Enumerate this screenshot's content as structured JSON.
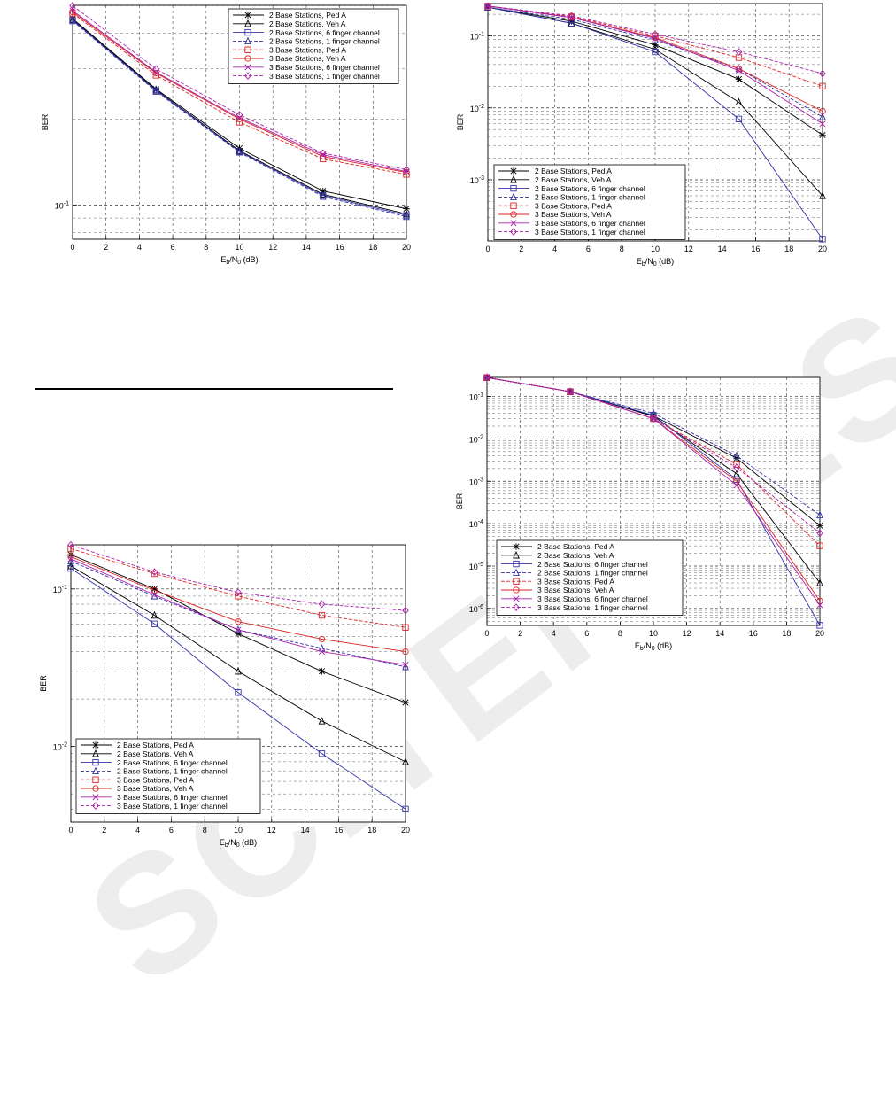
{
  "page": {
    "watermark": "SCITEPRESS"
  },
  "chart_data": [
    {
      "type": "line",
      "xlabel": "Eb/N0 (dB)",
      "ylabel": "BER",
      "xlim": [
        0,
        20
      ],
      "ylim_log10": [
        -1.12,
        -0.3
      ],
      "x_ticks": [
        0,
        2,
        4,
        6,
        8,
        10,
        12,
        14,
        16,
        18,
        20
      ],
      "y_tick_labels": [
        "10^-1"
      ],
      "grid": "dashed",
      "legend_position": "top-right",
      "x": [
        0,
        5,
        10,
        15,
        20
      ],
      "series": [
        {
          "name": "2 Base Stations, Ped A",
          "color": "#000000",
          "dash": false,
          "marker": "star",
          "values": [
            0.45,
            0.255,
            0.158,
            0.112,
            0.097
          ]
        },
        {
          "name": "2 Base Stations, Veh A",
          "color": "#000000",
          "dash": false,
          "marker": "triangle",
          "values": [
            0.447,
            0.253,
            0.155,
            0.109,
            0.093
          ]
        },
        {
          "name": "2 Base Stations, 6 finger channel",
          "color": "#3333aa",
          "dash": false,
          "marker": "square",
          "values": [
            0.445,
            0.252,
            0.154,
            0.108,
            0.092
          ]
        },
        {
          "name": "2 Base Stations, 1 finger channel",
          "color": "#3333aa",
          "dash": true,
          "marker": "triangle",
          "values": [
            0.442,
            0.25,
            0.153,
            0.107,
            0.091
          ]
        },
        {
          "name": "3 Base Stations, Ped A",
          "color": "#dd2222",
          "dash": true,
          "marker": "square",
          "values": [
            0.47,
            0.285,
            0.195,
            0.145,
            0.128
          ]
        },
        {
          "name": "3 Base Stations, Veh A",
          "color": "#dd2222",
          "dash": false,
          "marker": "circle",
          "values": [
            0.475,
            0.29,
            0.2,
            0.148,
            0.13
          ]
        },
        {
          "name": "3 Base Stations, 6 finger channel",
          "color": "#aa22aa",
          "dash": false,
          "marker": "x",
          "values": [
            0.48,
            0.292,
            0.202,
            0.15,
            0.131
          ]
        },
        {
          "name": "3 Base Stations, 1 finger channel",
          "color": "#aa22aa",
          "dash": true,
          "marker": "diamond",
          "values": [
            0.5,
            0.3,
            0.207,
            0.152,
            0.133
          ]
        }
      ]
    },
    {
      "type": "line",
      "xlabel": "Eb/N0 (dB)",
      "ylabel": "BER",
      "xlim": [
        0,
        20
      ],
      "ylim_log10": [
        -3.85,
        -0.55
      ],
      "x_ticks": [
        0,
        2,
        4,
        6,
        8,
        10,
        12,
        14,
        16,
        18,
        20
      ],
      "y_tick_labels": [
        "10^-1",
        "10^-2",
        "10^-3"
      ],
      "grid": "dashed",
      "legend_position": "bottom-left",
      "x": [
        0,
        5,
        10,
        15,
        20
      ],
      "series": [
        {
          "name": "2 Base Stations, Ped A",
          "color": "#000000",
          "dash": false,
          "marker": "star",
          "values": [
            0.25,
            0.16,
            0.075,
            0.025,
            0.0042
          ]
        },
        {
          "name": "2 Base Stations, Veh A",
          "color": "#000000",
          "dash": false,
          "marker": "triangle",
          "values": [
            0.25,
            0.15,
            0.065,
            0.012,
            0.0006
          ]
        },
        {
          "name": "2 Base Stations, 6 finger channel",
          "color": "#3333aa",
          "dash": false,
          "marker": "square",
          "values": [
            0.25,
            0.15,
            0.06,
            0.007,
            0.00015
          ]
        },
        {
          "name": "2 Base Stations, 1 finger channel",
          "color": "#3333aa",
          "dash": true,
          "marker": "triangle",
          "values": [
            0.25,
            0.17,
            0.088,
            0.035,
            0.0075
          ]
        },
        {
          "name": "3 Base Stations, Ped A",
          "color": "#dd2222",
          "dash": true,
          "marker": "square",
          "values": [
            0.26,
            0.185,
            0.1,
            0.05,
            0.02
          ]
        },
        {
          "name": "3 Base Stations, Veh A",
          "color": "#dd2222",
          "dash": false,
          "marker": "circle",
          "values": [
            0.26,
            0.18,
            0.095,
            0.035,
            0.009
          ]
        },
        {
          "name": "3 Base Stations, 6 finger channel",
          "color": "#aa22aa",
          "dash": false,
          "marker": "x",
          "values": [
            0.26,
            0.18,
            0.092,
            0.033,
            0.006
          ]
        },
        {
          "name": "3 Base Stations, 1 finger channel",
          "color": "#aa22aa",
          "dash": true,
          "marker": "diamond",
          "values": [
            0.26,
            0.19,
            0.105,
            0.06,
            0.03
          ]
        }
      ]
    },
    {
      "type": "line",
      "xlabel": "Eb/N0 (dB)",
      "ylabel": "BER",
      "xlim": [
        0,
        20
      ],
      "ylim_log10": [
        -2.48,
        -0.72
      ],
      "x_ticks": [
        0,
        2,
        4,
        6,
        8,
        10,
        12,
        14,
        16,
        18,
        20
      ],
      "y_tick_labels": [
        "10^-1",
        "10^-2"
      ],
      "grid": "dashed",
      "legend_position": "bottom-left",
      "x": [
        0,
        5,
        10,
        15,
        20
      ],
      "series": [
        {
          "name": "2 Base Stations, Ped A",
          "color": "#000000",
          "dash": false,
          "marker": "star",
          "values": [
            0.165,
            0.1,
            0.052,
            0.03,
            0.019
          ]
        },
        {
          "name": "2 Base Stations, Veh A",
          "color": "#000000",
          "dash": false,
          "marker": "triangle",
          "values": [
            0.14,
            0.068,
            0.03,
            0.0145,
            0.008
          ]
        },
        {
          "name": "2 Base Stations, 6 finger channel",
          "color": "#3333aa",
          "dash": false,
          "marker": "square",
          "values": [
            0.135,
            0.06,
            0.022,
            0.009,
            0.004
          ]
        },
        {
          "name": "2 Base Stations, 1 finger channel",
          "color": "#3333aa",
          "dash": true,
          "marker": "triangle",
          "values": [
            0.15,
            0.09,
            0.055,
            0.042,
            0.032
          ]
        },
        {
          "name": "3 Base Stations, Ped A",
          "color": "#dd2222",
          "dash": true,
          "marker": "square",
          "values": [
            0.18,
            0.125,
            0.09,
            0.068,
            0.057
          ]
        },
        {
          "name": "3 Base Stations, Veh A",
          "color": "#dd2222",
          "dash": false,
          "marker": "circle",
          "values": [
            0.16,
            0.098,
            0.062,
            0.048,
            0.04
          ]
        },
        {
          "name": "3 Base Stations, 6 finger channel",
          "color": "#aa22aa",
          "dash": false,
          "marker": "x",
          "values": [
            0.155,
            0.092,
            0.055,
            0.04,
            0.033
          ]
        },
        {
          "name": "3 Base Stations, 1 finger channel",
          "color": "#aa22aa",
          "dash": true,
          "marker": "diamond",
          "values": [
            0.19,
            0.128,
            0.095,
            0.08,
            0.073
          ]
        }
      ]
    },
    {
      "type": "line",
      "xlabel": "Eb/N0 (dB)",
      "ylabel": "BER",
      "xlim": [
        0,
        20
      ],
      "ylim_log10": [
        -6.4,
        -0.55
      ],
      "x_ticks": [
        0,
        2,
        4,
        6,
        8,
        10,
        12,
        14,
        16,
        18,
        20
      ],
      "y_tick_labels": [
        "10^-1",
        "10^-2",
        "10^-3",
        "10^-4",
        "10^-5",
        "10^-6"
      ],
      "grid": "dashed",
      "legend_position": "bottom-left",
      "x": [
        0,
        5,
        10,
        15,
        20
      ],
      "series": [
        {
          "name": "2 Base Stations, Ped A",
          "color": "#000000",
          "dash": false,
          "marker": "star",
          "values": [
            0.28,
            0.13,
            0.035,
            0.0035,
            9e-05
          ]
        },
        {
          "name": "2 Base Stations, Veh A",
          "color": "#000000",
          "dash": false,
          "marker": "triangle",
          "values": [
            0.28,
            0.13,
            0.034,
            0.0015,
            4e-06
          ]
        },
        {
          "name": "2 Base Stations, 6 finger channel",
          "color": "#3333aa",
          "dash": false,
          "marker": "square",
          "values": [
            0.28,
            0.13,
            0.036,
            0.0011,
            4e-07
          ]
        },
        {
          "name": "2 Base Stations, 1 finger channel",
          "color": "#3333aa",
          "dash": true,
          "marker": "triangle",
          "values": [
            0.28,
            0.13,
            0.04,
            0.004,
            0.00016
          ]
        },
        {
          "name": "3 Base Stations, Ped A",
          "color": "#dd2222",
          "dash": true,
          "marker": "square",
          "values": [
            0.28,
            0.13,
            0.03,
            0.0025,
            3e-05
          ]
        },
        {
          "name": "3 Base Stations, Veh A",
          "color": "#dd2222",
          "dash": false,
          "marker": "circle",
          "values": [
            0.28,
            0.13,
            0.03,
            0.001,
            1.5e-06
          ]
        },
        {
          "name": "3 Base Stations, 6 finger channel",
          "color": "#aa22aa",
          "dash": false,
          "marker": "x",
          "values": [
            0.28,
            0.13,
            0.03,
            0.0008,
            1.2e-06
          ]
        },
        {
          "name": "3 Base Stations, 1 finger channel",
          "color": "#aa22aa",
          "dash": true,
          "marker": "diamond",
          "values": [
            0.28,
            0.13,
            0.03,
            0.0021,
            6e-05
          ]
        }
      ]
    }
  ]
}
